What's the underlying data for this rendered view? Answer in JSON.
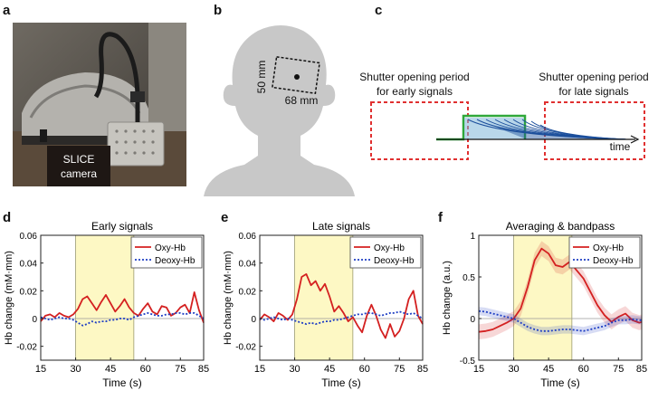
{
  "panels": {
    "a": {
      "letter": "a",
      "label_line1": "SLICE",
      "label_line2": "camera"
    },
    "b": {
      "letter": "b",
      "dim_height": "50 mm",
      "dim_width": "68 mm"
    },
    "c": {
      "letter": "c",
      "early_line1": "Shutter opening period",
      "early_line2": "for early signals",
      "late_line1": "Shutter opening period",
      "late_line2": "for late signals",
      "axis": "time"
    }
  },
  "colors": {
    "oxy": "#d42020",
    "deoxy": "#1f3fc4",
    "highlight": "#fdf8c4",
    "shutter": "#e03030",
    "gate": "#2fa83a",
    "decay": "#1c4f9c"
  },
  "chart_data": [
    {
      "type": "line",
      "panel": "d",
      "title": "Early signals",
      "xlabel": "Time (s)",
      "ylabel": "Hb change (mM·mm)",
      "xlim": [
        15,
        85
      ],
      "ylim": [
        -0.03,
        0.06
      ],
      "xticks": [
        15,
        30,
        45,
        60,
        75,
        85
      ],
      "yticks": [
        -0.02,
        0,
        0.02,
        0.04,
        0.06
      ],
      "ytick_labels": [
        "-0.02",
        "0",
        "0.02",
        "0.04",
        "0.06"
      ],
      "highlight": [
        30,
        55
      ],
      "legend_position": "top-right",
      "series": [
        {
          "name": "Oxy-Hb",
          "style": "solid",
          "x": [
            15,
            17,
            19,
            21,
            23,
            25,
            27,
            29,
            31,
            33,
            35,
            37,
            39,
            41,
            43,
            45,
            47,
            49,
            51,
            53,
            55,
            57,
            59,
            61,
            63,
            65,
            67,
            69,
            71,
            73,
            75,
            77,
            79,
            81,
            83,
            85
          ],
          "y": [
            -0.002,
            0.002,
            0.003,
            0.001,
            0.004,
            0.002,
            0.001,
            0.003,
            0.007,
            0.014,
            0.016,
            0.011,
            0.006,
            0.012,
            0.017,
            0.011,
            0.005,
            0.009,
            0.014,
            0.008,
            0.004,
            0.002,
            0.007,
            0.011,
            0.005,
            0.003,
            0.009,
            0.008,
            0.002,
            0.004,
            0.008,
            0.01,
            0.004,
            0.019,
            0.006,
            -0.003
          ]
        },
        {
          "name": "Deoxy-Hb",
          "style": "dotted",
          "x": [
            15,
            17,
            19,
            21,
            23,
            25,
            27,
            29,
            31,
            33,
            35,
            37,
            39,
            41,
            43,
            45,
            47,
            49,
            51,
            53,
            55,
            57,
            59,
            61,
            63,
            65,
            67,
            69,
            71,
            73,
            75,
            77,
            79,
            81,
            83,
            85
          ],
          "y": [
            0.001,
            0,
            -0.001,
            0,
            0.001,
            0,
            0,
            -0.001,
            -0.003,
            -0.005,
            -0.004,
            -0.002,
            -0.003,
            -0.002,
            -0.002,
            -0.001,
            -0.001,
            0,
            0,
            -0.001,
            0.001,
            0.002,
            0.003,
            0.004,
            0.003,
            0.002,
            0.002,
            0.003,
            0.003,
            0.004,
            0.004,
            0.003,
            0.004,
            0.004,
            0.002,
            0
          ]
        }
      ]
    },
    {
      "type": "line",
      "panel": "e",
      "title": "Late signals",
      "xlabel": "Time (s)",
      "ylabel": "Hb change (mM·mm)",
      "xlim": [
        15,
        85
      ],
      "ylim": [
        -0.03,
        0.06
      ],
      "xticks": [
        15,
        30,
        45,
        60,
        75,
        85
      ],
      "yticks": [
        -0.02,
        0,
        0.02,
        0.04,
        0.06
      ],
      "ytick_labels": [
        "-0.02",
        "0",
        "0.02",
        "0.04",
        "0.06"
      ],
      "highlight": [
        30,
        55
      ],
      "legend_position": "top-right",
      "series": [
        {
          "name": "Oxy-Hb",
          "style": "solid",
          "x": [
            15,
            17,
            19,
            21,
            23,
            25,
            27,
            29,
            31,
            33,
            35,
            37,
            39,
            41,
            43,
            45,
            47,
            49,
            51,
            53,
            55,
            57,
            59,
            61,
            63,
            65,
            67,
            69,
            71,
            73,
            75,
            77,
            79,
            81,
            83,
            85
          ],
          "y": [
            -0.001,
            0.003,
            0.001,
            -0.002,
            0.004,
            0.002,
            -0.001,
            0.003,
            0.014,
            0.03,
            0.032,
            0.024,
            0.027,
            0.02,
            0.025,
            0.016,
            0.005,
            0.009,
            0.004,
            -0.002,
            0.001,
            -0.005,
            -0.01,
            0.002,
            0.01,
            0.002,
            -0.008,
            -0.014,
            -0.004,
            -0.013,
            -0.009,
            0,
            0.014,
            0.02,
            0.002,
            -0.004
          ]
        },
        {
          "name": "Deoxy-Hb",
          "style": "dotted",
          "x": [
            15,
            17,
            19,
            21,
            23,
            25,
            27,
            29,
            31,
            33,
            35,
            37,
            39,
            41,
            43,
            45,
            47,
            49,
            51,
            53,
            55,
            57,
            59,
            61,
            63,
            65,
            67,
            69,
            71,
            73,
            75,
            77,
            79,
            81,
            83,
            85
          ],
          "y": [
            0,
            -0.001,
            0,
            0.001,
            0,
            -0.001,
            0,
            -0.001,
            -0.002,
            -0.003,
            -0.004,
            -0.003,
            -0.004,
            -0.003,
            -0.002,
            -0.002,
            -0.001,
            -0.001,
            0,
            0.001,
            0.002,
            0.003,
            0.003,
            0.004,
            0.004,
            0.003,
            0.002,
            0.003,
            0.004,
            0.004,
            0.005,
            0.004,
            0.003,
            0.004,
            0.002,
            0
          ]
        }
      ]
    },
    {
      "type": "line",
      "panel": "f",
      "title": "Averaging & bandpass",
      "xlabel": "Time (s)",
      "ylabel": "Hb change (a.u.)",
      "xlim": [
        15,
        85
      ],
      "ylim": [
        -0.5,
        1
      ],
      "xticks": [
        15,
        30,
        45,
        60,
        75,
        85
      ],
      "yticks": [
        -0.5,
        0,
        0.5,
        1
      ],
      "ytick_labels": [
        "-0.5",
        "0",
        "0.5",
        "1"
      ],
      "highlight": [
        30,
        55
      ],
      "legend_position": "top-right",
      "series": [
        {
          "name": "Oxy-Hb",
          "style": "solid",
          "band": 0.09,
          "x": [
            15,
            18,
            21,
            24,
            27,
            30,
            33,
            36,
            39,
            42,
            45,
            48,
            51,
            54,
            57,
            60,
            63,
            66,
            69,
            72,
            75,
            78,
            81,
            84,
            85
          ],
          "y": [
            -0.16,
            -0.15,
            -0.13,
            -0.09,
            -0.05,
            0,
            0.12,
            0.38,
            0.7,
            0.84,
            0.78,
            0.64,
            0.62,
            0.68,
            0.58,
            0.48,
            0.32,
            0.16,
            0.04,
            -0.04,
            0.02,
            0.06,
            -0.02,
            -0.05,
            -0.04
          ]
        },
        {
          "name": "Deoxy-Hb",
          "style": "dotted",
          "band": 0.05,
          "x": [
            15,
            18,
            21,
            24,
            27,
            30,
            33,
            36,
            39,
            42,
            45,
            48,
            51,
            54,
            57,
            60,
            63,
            66,
            69,
            72,
            75,
            78,
            81,
            84,
            85
          ],
          "y": [
            0.09,
            0.08,
            0.06,
            0.04,
            0.02,
            0,
            -0.05,
            -0.1,
            -0.13,
            -0.15,
            -0.15,
            -0.14,
            -0.13,
            -0.13,
            -0.14,
            -0.15,
            -0.13,
            -0.11,
            -0.09,
            -0.05,
            -0.02,
            -0.02,
            -0.01,
            -0.02,
            -0.02
          ]
        }
      ]
    }
  ]
}
